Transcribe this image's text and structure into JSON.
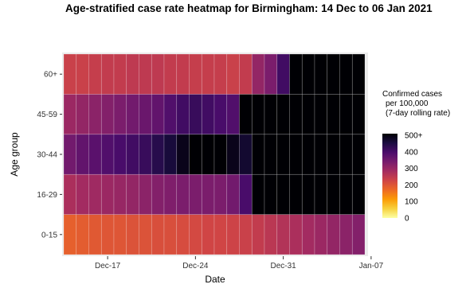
{
  "chart_data": {
    "type": "heatmap",
    "title": "Age-stratified case rate heatmap for Birmingham: 14 Dec to 06 Jan 2021",
    "xlabel": "Date",
    "ylabel": "Age group",
    "x_ticks": [
      "Dec-17",
      "Dec-24",
      "Dec-31",
      "Jan-07"
    ],
    "x_dates": [
      "2020-12-14",
      "2020-12-15",
      "2020-12-16",
      "2020-12-17",
      "2020-12-18",
      "2020-12-19",
      "2020-12-20",
      "2020-12-21",
      "2020-12-22",
      "2020-12-23",
      "2020-12-24",
      "2020-12-25",
      "2020-12-26",
      "2020-12-27",
      "2020-12-28",
      "2020-12-29",
      "2020-12-30",
      "2020-12-31",
      "2021-01-01",
      "2021-01-02",
      "2021-01-03",
      "2021-01-04",
      "2021-01-05",
      "2021-01-06"
    ],
    "age_groups": [
      "0-15",
      "16-29",
      "30-44",
      "45-59",
      "60+"
    ],
    "values": {
      "60+": [
        230,
        230,
        235,
        240,
        240,
        245,
        245,
        245,
        240,
        240,
        235,
        235,
        235,
        230,
        240,
        300,
        330,
        400,
        500,
        500,
        500,
        500,
        500,
        500
      ],
      "45-59": [
        290,
        300,
        310,
        320,
        330,
        340,
        350,
        360,
        380,
        400,
        410,
        400,
        390,
        380,
        500,
        500,
        500,
        500,
        500,
        500,
        500,
        500,
        500,
        500
      ],
      "30-44": [
        340,
        360,
        370,
        380,
        390,
        400,
        410,
        430,
        450,
        480,
        500,
        500,
        500,
        480,
        460,
        500,
        500,
        500,
        500,
        500,
        500,
        500,
        500,
        500
      ],
      "16-29": [
        270,
        280,
        285,
        290,
        295,
        300,
        310,
        320,
        325,
        330,
        330,
        330,
        330,
        340,
        390,
        500,
        500,
        500,
        500,
        500,
        500,
        500,
        500,
        500
      ],
      "0-15": [
        180,
        185,
        190,
        195,
        195,
        200,
        200,
        205,
        205,
        210,
        215,
        220,
        220,
        225,
        230,
        240,
        250,
        260,
        270,
        280,
        290,
        300,
        310,
        320
      ]
    },
    "legend": {
      "title": [
        "Confirmed cases",
        "per 100,000",
        "(7-day rolling rate)"
      ],
      "ticks": [
        "500+",
        "400",
        "300",
        "200",
        "100",
        "0"
      ],
      "range": [
        0,
        500
      ],
      "colors": [
        "#fcffa4",
        "#f7d13d",
        "#fb9b06",
        "#ed6925",
        "#cf4446",
        "#a52c60",
        "#781c6d",
        "#4a0c6b",
        "#1b0c41",
        "#000004"
      ]
    },
    "grid": true,
    "legend_position": "right"
  }
}
